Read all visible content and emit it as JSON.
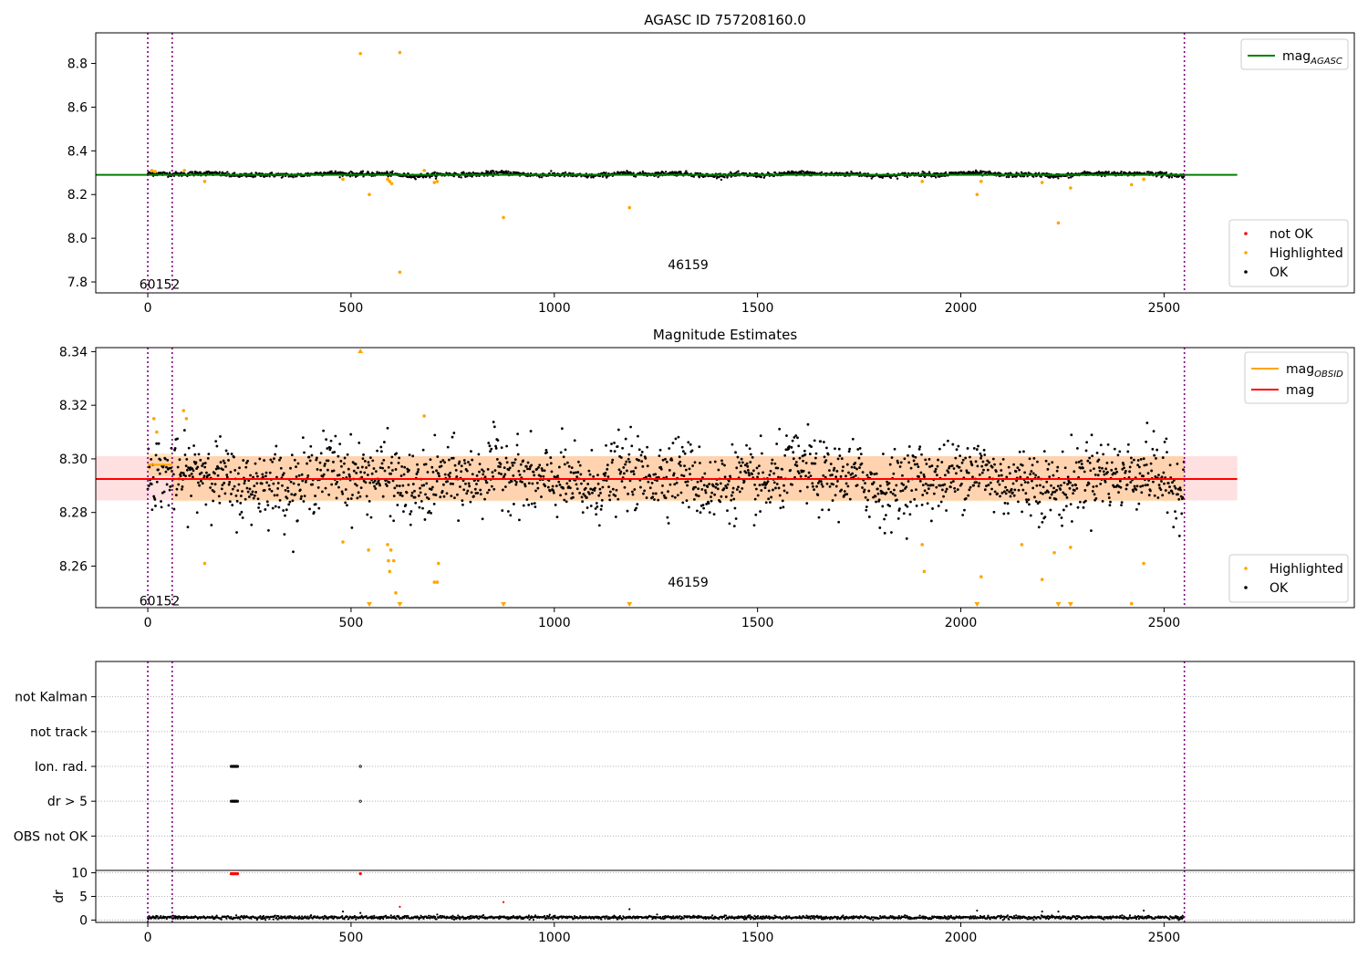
{
  "chart_data": [
    {
      "panel": "agasc",
      "type": "scatter",
      "title": "AGASC ID 757208160.0",
      "xlim": [
        -128,
        2968
      ],
      "ylim": [
        7.75,
        8.94
      ],
      "x_ticks": [
        0,
        500,
        1000,
        1500,
        2000,
        2500
      ],
      "y_ticks": [
        7.8,
        8.0,
        8.2,
        8.4,
        8.6,
        8.8
      ],
      "grid": false,
      "obsid_boundaries": [
        0,
        60,
        2550
      ],
      "obsid_labels": [
        {
          "x": 0,
          "y": 7.79,
          "text": "60152"
        },
        {
          "x": 1300,
          "y": 7.88,
          "text": "46159"
        }
      ],
      "reference_line": {
        "name": "AGASC",
        "value": 8.29,
        "color": "#008000",
        "x_range": [
          -128,
          2680
        ]
      },
      "legend_lines": [
        {
          "label": "mag",
          "sub": "AGASC",
          "color": "#008000"
        }
      ],
      "legend_lines_placement": "upper-right",
      "legend_points": [
        {
          "label": "not OK",
          "color": "#ff0000"
        },
        {
          "label": "Highlighted",
          "color": "#ffa500"
        },
        {
          "label": "OK",
          "color": "#000000"
        }
      ],
      "legend_points_placement": "lower-right",
      "ok_band": {
        "center": 8.292,
        "wiggle": 0.007,
        "noise": 0.005,
        "x_range": [
          0,
          2550
        ]
      },
      "highlighted_points": [
        [
          10,
          8.31
        ],
        [
          18,
          8.305
        ],
        [
          90,
          8.31
        ],
        [
          140,
          8.26
        ],
        [
          480,
          8.27
        ],
        [
          523,
          8.845
        ],
        [
          545,
          8.2
        ],
        [
          590,
          8.27
        ],
        [
          595,
          8.26
        ],
        [
          600,
          8.25
        ],
        [
          620,
          8.85
        ],
        [
          620,
          7.845
        ],
        [
          680,
          8.31
        ],
        [
          705,
          8.255
        ],
        [
          712,
          8.26
        ],
        [
          875,
          8.095
        ],
        [
          1185,
          8.14
        ],
        [
          1905,
          8.26
        ],
        [
          2040,
          8.2
        ],
        [
          2050,
          8.26
        ],
        [
          2200,
          8.255
        ],
        [
          2240,
          8.07
        ],
        [
          2270,
          8.23
        ],
        [
          2420,
          8.245
        ],
        [
          2450,
          8.27
        ]
      ]
    },
    {
      "panel": "mag",
      "type": "scatter",
      "title": "Magnitude Estimates",
      "xlim": [
        -128,
        2968
      ],
      "ylim": [
        8.2445,
        8.3415
      ],
      "x_ticks": [
        0,
        500,
        1000,
        1500,
        2000,
        2500
      ],
      "y_ticks": [
        8.26,
        8.28,
        8.3,
        8.32,
        8.34
      ],
      "grid": false,
      "obsid_boundaries": [
        0,
        60,
        2550
      ],
      "obsid_labels": [
        {
          "x": 0,
          "y": 8.247,
          "text": "60152"
        },
        {
          "x": 1300,
          "y": 8.254,
          "text": "46159"
        }
      ],
      "mag_line": {
        "value": 8.2925,
        "color": "#ff0000",
        "x_range": [
          -128,
          2680
        ],
        "band": [
          8.2845,
          8.301
        ]
      },
      "obsid_segments": [
        {
          "x_range": [
            0,
            60
          ],
          "value": 8.2978,
          "band": [
            8.2935,
            8.302
          ]
        },
        {
          "x_range": [
            60,
            2550
          ],
          "value": 8.2925,
          "band": [
            8.2842,
            8.301
          ]
        }
      ],
      "legend_lines": [
        {
          "label": "mag",
          "sub": "OBSID",
          "color": "#ffa500"
        },
        {
          "label": "mag",
          "sub": "",
          "color": "#ff0000"
        }
      ],
      "legend_lines_placement": "upper-right",
      "legend_points": [
        {
          "label": "Highlighted",
          "color": "#ffa500"
        },
        {
          "label": "OK",
          "color": "#000000"
        }
      ],
      "legend_points_placement": "lower-right",
      "ok_band": {
        "center": 8.2925,
        "wiggle": 0.0045,
        "noise": 0.0065,
        "x_range": [
          0,
          2550
        ]
      },
      "highlighted_points": [
        [
          15,
          8.315
        ],
        [
          22,
          8.31
        ],
        [
          88,
          8.318
        ],
        [
          95,
          8.315
        ],
        [
          140,
          8.261
        ],
        [
          480,
          8.269
        ],
        [
          543,
          8.266
        ],
        [
          590,
          8.268
        ],
        [
          592,
          8.262
        ],
        [
          595,
          8.258
        ],
        [
          598,
          8.266
        ],
        [
          605,
          8.262
        ],
        [
          610,
          8.25
        ],
        [
          680,
          8.316
        ],
        [
          705,
          8.254
        ],
        [
          712,
          8.254
        ],
        [
          715,
          8.261
        ],
        [
          1905,
          8.268
        ],
        [
          1910,
          8.258
        ],
        [
          2050,
          8.256
        ],
        [
          2150,
          8.268
        ],
        [
          2200,
          8.255
        ],
        [
          2230,
          8.265
        ],
        [
          2270,
          8.267
        ],
        [
          2420,
          8.246
        ],
        [
          2450,
          8.261
        ]
      ],
      "clipped_high": [
        523
      ],
      "clipped_low": [
        545,
        620,
        875,
        1185,
        2040,
        2240,
        2270
      ]
    },
    {
      "panel": "flags",
      "type": "scatter",
      "xlim": [
        -128,
        2968
      ],
      "categories": [
        "OBS not OK",
        "dr > 5",
        "Ion. rad.",
        "not track",
        "not Kalman"
      ],
      "grid": true,
      "obsid_boundaries": [
        0,
        60,
        2550
      ],
      "flag_points": [
        {
          "category": "Ion. rad.",
          "x": [
            205,
            207,
            209,
            211,
            213,
            215,
            217,
            219,
            221,
            523
          ]
        },
        {
          "category": "dr > 5",
          "x": [
            205,
            207,
            209,
            211,
            213,
            215,
            217,
            219,
            221,
            523
          ]
        }
      ]
    },
    {
      "panel": "dr",
      "type": "scatter",
      "ylabel": "dr",
      "xlim": [
        -128,
        2968
      ],
      "ylim": [
        -0.5,
        10.5
      ],
      "x_ticks": [
        0,
        500,
        1000,
        1500,
        2000,
        2500
      ],
      "y_ticks": [
        0,
        5,
        10
      ],
      "grid": true,
      "obsid_boundaries": [
        0,
        60,
        2550
      ],
      "ok_band": {
        "center": 0.55,
        "noise": 0.35,
        "x_range": [
          0,
          2550
        ]
      },
      "outliers": [
        [
          480,
          1.8
        ],
        [
          523,
          1.5
        ],
        [
          620,
          2.8
        ],
        [
          875,
          3.8
        ],
        [
          1185,
          2.3
        ],
        [
          2040,
          2.0
        ],
        [
          2200,
          1.8
        ],
        [
          2240,
          1.8
        ],
        [
          2450,
          2.0
        ]
      ],
      "clipped_red": [
        205,
        207,
        209,
        211,
        213,
        215,
        217,
        219,
        221,
        523
      ]
    }
  ]
}
